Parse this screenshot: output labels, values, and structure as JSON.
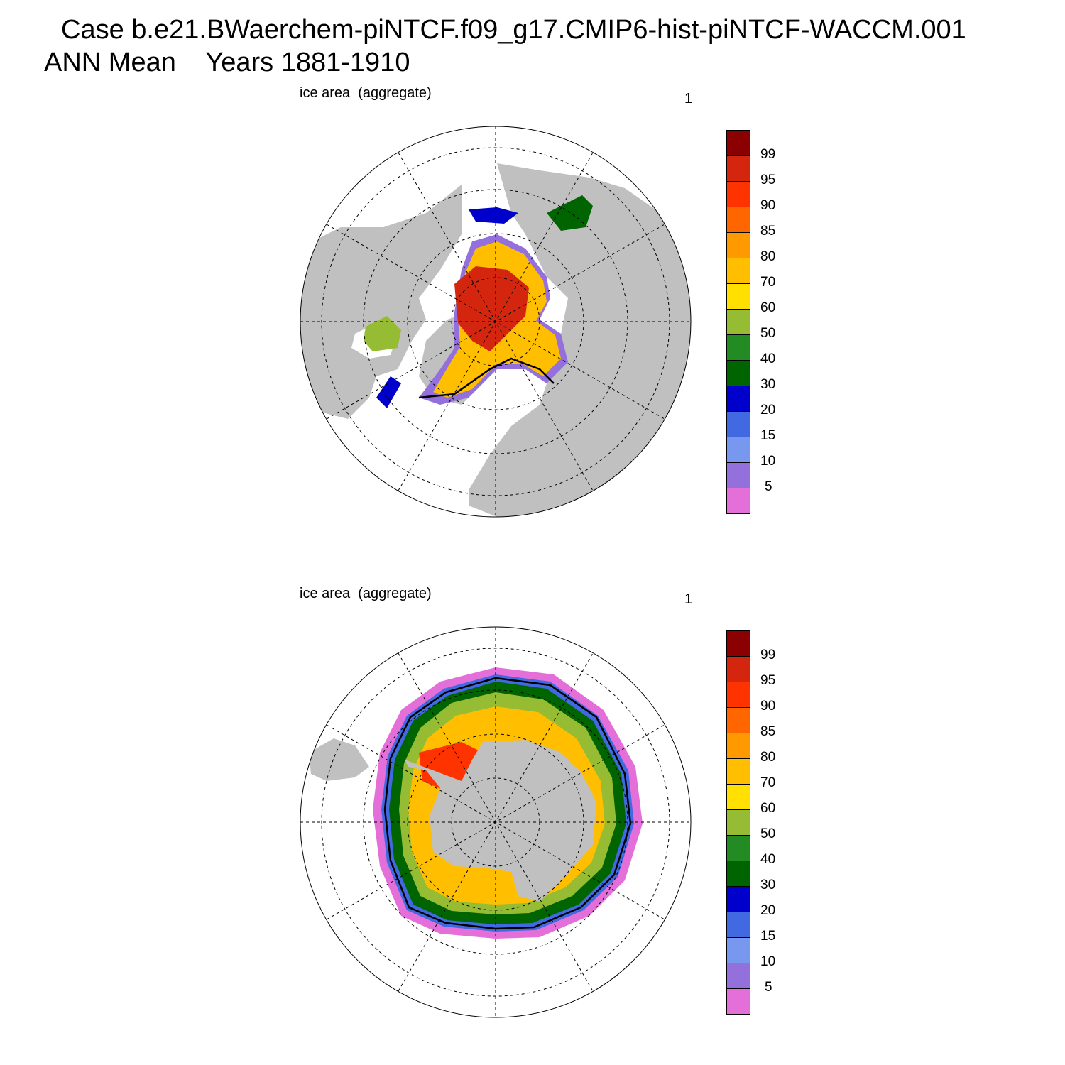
{
  "title": {
    "line1": "Case b.e21.BWaerchem-piNTCF.f09_g17.CMIP6-hist-piNTCF-WACCM.001",
    "line2": "ANN Mean    Years 1881-1910"
  },
  "panels": [
    {
      "id": "nh",
      "label": "ice area  (aggregate)",
      "number": "1",
      "hemisphere": "north"
    },
    {
      "id": "sh",
      "label": "ice area  (aggregate)",
      "number": "1",
      "hemisphere": "south"
    }
  ],
  "colorbar": {
    "labels": [
      "99",
      "95",
      "90",
      "85",
      "80",
      "70",
      "60",
      "50",
      "40",
      "30",
      "20",
      "15",
      "10",
      "5"
    ],
    "colors": [
      "#8b0000",
      "#d4260f",
      "#ff3300",
      "#ff6600",
      "#ff9900",
      "#ffbf00",
      "#ffe000",
      "#95bc33",
      "#238b23",
      "#006400",
      "#0000cd",
      "#4169e1",
      "#7898f0",
      "#9370db",
      "#e56fd9"
    ]
  },
  "colors": {
    "land": "#c0c0c0",
    "ocean": "#ffffff",
    "grid": "#000000"
  }
}
